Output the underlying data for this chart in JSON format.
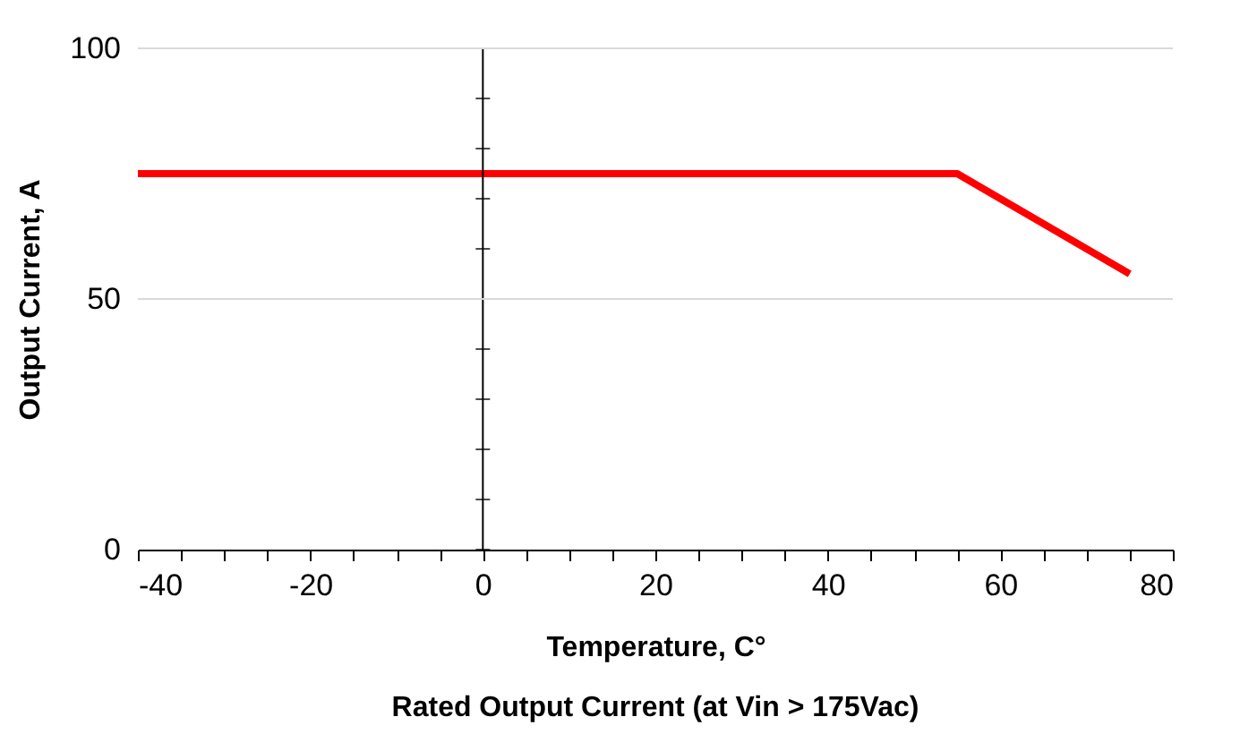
{
  "chart_data": {
    "type": "line",
    "title": "Rated Output Current (at Vin > 175Vac)",
    "xlabel": "Temperature, C°",
    "ylabel": "Output Current, A",
    "series": [
      {
        "color": "#ff0000",
        "x": [
          -40,
          55,
          75
        ],
        "values": [
          75,
          75,
          55
        ]
      }
    ],
    "xlim": [
      -40,
      80
    ],
    "xticks": [
      -40,
      {
        "value": -35,
        "label": null
      },
      {
        "value": -30,
        "label": null
      },
      {
        "value": -25,
        "label": null
      },
      -20,
      {
        "value": -15,
        "label": null
      },
      {
        "value": -10,
        "label": null
      },
      {
        "value": -5,
        "label": null
      },
      0,
      {
        "value": 5,
        "label": null
      },
      {
        "value": 10,
        "label": null
      },
      {
        "value": 15,
        "label": null
      },
      20,
      {
        "value": 25,
        "label": null
      },
      {
        "value": 30,
        "label": null
      },
      {
        "value": 35,
        "label": null
      },
      40,
      {
        "value": 45,
        "label": null
      },
      {
        "value": 50,
        "label": null
      },
      {
        "value": 55,
        "label": null
      },
      60,
      {
        "value": 65,
        "label": null
      },
      {
        "value": 70,
        "label": null
      },
      {
        "value": 75,
        "label": null
      },
      80
    ],
    "ylim": [
      0,
      100
    ],
    "yticks": [
      0,
      50,
      100
    ],
    "ref_lines": [
      {
        "axis": "x",
        "value": 0,
        "color": "#000000"
      },
      {
        "axis": "y",
        "value": 50,
        "color": "#d9d9d9"
      },
      {
        "axis": "y",
        "value": 100,
        "color": "#d9d9d9"
      }
    ],
    "marker": "none",
    "line_style": "solid"
  }
}
